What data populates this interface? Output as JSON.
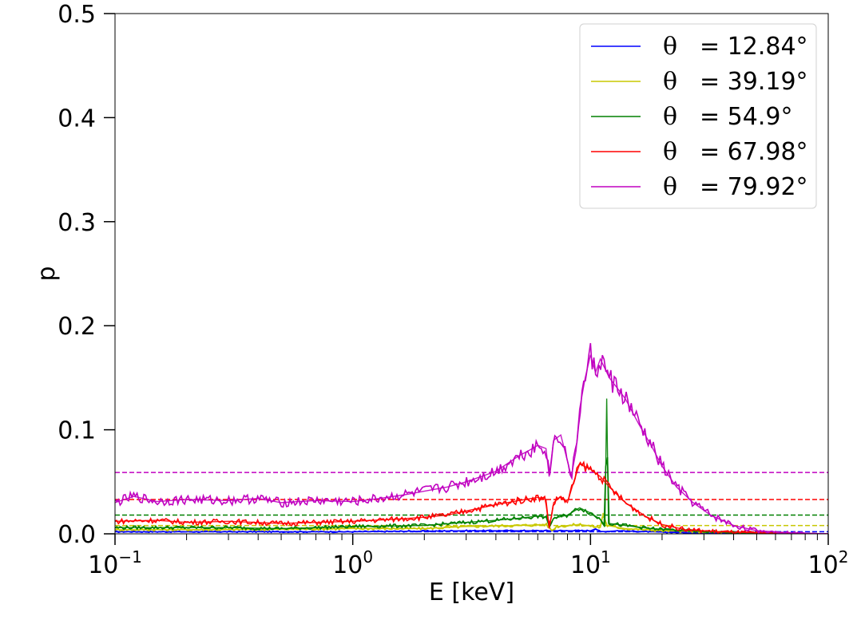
{
  "chart_data": {
    "type": "line",
    "xscale": "log",
    "xlim": [
      0.1,
      100
    ],
    "ylim": [
      0,
      0.5
    ],
    "xlabel": "E [keV]",
    "ylabel": "p",
    "yticks": [
      "0.0",
      "0.1",
      "0.2",
      "0.3",
      "0.4",
      "0.5"
    ],
    "xticks": [
      {
        "base": "10",
        "exp": "−1"
      },
      {
        "base": "10",
        "exp": "0"
      },
      {
        "base": "10",
        "exp": "1"
      },
      {
        "base": "10",
        "exp": "2"
      }
    ],
    "legend_position": "top-right",
    "series": [
      {
        "name": "θ = 12.84°",
        "legend_symbol": "θ",
        "legend_value": "= 12.84°",
        "color": "#0000ff",
        "points": [
          [
            0.1,
            0.002
          ],
          [
            0.3,
            0.002
          ],
          [
            1,
            0.002
          ],
          [
            3,
            0.003
          ],
          [
            5,
            0.003
          ],
          [
            6.5,
            0.003
          ],
          [
            8,
            0.003
          ],
          [
            10,
            0.003
          ],
          [
            10.5,
            0.005
          ],
          [
            11,
            0.002
          ],
          [
            13,
            0.003
          ],
          [
            18,
            0.002
          ],
          [
            25,
            0.001
          ],
          [
            40,
            0.0005
          ],
          [
            100,
            0.0
          ]
        ],
        "average": 0.002
      },
      {
        "name": "θ = 39.19°",
        "legend_symbol": "θ",
        "legend_value": "= 39.19°",
        "color": "#c8c800",
        "points": [
          [
            0.1,
            0.004
          ],
          [
            0.3,
            0.004
          ],
          [
            1,
            0.005
          ],
          [
            2,
            0.005
          ],
          [
            3,
            0.007
          ],
          [
            5,
            0.008
          ],
          [
            6.5,
            0.009
          ],
          [
            6.9,
            0.003
          ],
          [
            7.2,
            0.007
          ],
          [
            9,
            0.009
          ],
          [
            11,
            0.006
          ],
          [
            11.3,
            0.02
          ],
          [
            11.7,
            0.008
          ],
          [
            14,
            0.005
          ],
          [
            20,
            0.003
          ],
          [
            30,
            0.002
          ],
          [
            50,
            0.001
          ],
          [
            100,
            0.0
          ]
        ],
        "average": 0.008
      },
      {
        "name": "θ = 54.9°",
        "legend_symbol": "θ",
        "legend_value": "= 54.9°",
        "color": "#008000",
        "points": [
          [
            0.1,
            0.006
          ],
          [
            0.3,
            0.006
          ],
          [
            0.5,
            0.005
          ],
          [
            1,
            0.007
          ],
          [
            2,
            0.008
          ],
          [
            3,
            0.011
          ],
          [
            4,
            0.013
          ],
          [
            5,
            0.015
          ],
          [
            6,
            0.017
          ],
          [
            6.5,
            0.016
          ],
          [
            6.7,
            0.007
          ],
          [
            7,
            0.015
          ],
          [
            8,
            0.018
          ],
          [
            9,
            0.025
          ],
          [
            10,
            0.02
          ],
          [
            11,
            0.014
          ],
          [
            11.5,
            0.008
          ],
          [
            11.7,
            0.13
          ],
          [
            11.9,
            0.01
          ],
          [
            14,
            0.008
          ],
          [
            18,
            0.005
          ],
          [
            25,
            0.003
          ],
          [
            40,
            0.001
          ],
          [
            100,
            0.0
          ]
        ],
        "average": 0.018
      },
      {
        "name": "θ = 67.98°",
        "legend_symbol": "θ",
        "legend_value": "= 67.98°",
        "color": "#ff0000",
        "points": [
          [
            0.1,
            0.012
          ],
          [
            0.15,
            0.013
          ],
          [
            0.2,
            0.011
          ],
          [
            0.3,
            0.012
          ],
          [
            0.5,
            0.01
          ],
          [
            0.7,
            0.011
          ],
          [
            1,
            0.012
          ],
          [
            1.5,
            0.014
          ],
          [
            2,
            0.016
          ],
          [
            2.5,
            0.018
          ],
          [
            3,
            0.022
          ],
          [
            4,
            0.028
          ],
          [
            5,
            0.032
          ],
          [
            6,
            0.035
          ],
          [
            6.5,
            0.033
          ],
          [
            6.7,
            0.005
          ],
          [
            7,
            0.03
          ],
          [
            7.5,
            0.036
          ],
          [
            8,
            0.03
          ],
          [
            8.5,
            0.05
          ],
          [
            9,
            0.067
          ],
          [
            10,
            0.062
          ],
          [
            11,
            0.055
          ],
          [
            12,
            0.045
          ],
          [
            14,
            0.03
          ],
          [
            17,
            0.017
          ],
          [
            20,
            0.009
          ],
          [
            25,
            0.004
          ],
          [
            35,
            0.002
          ],
          [
            50,
            0.001
          ],
          [
            100,
            0.0
          ]
        ],
        "average": 0.033
      },
      {
        "name": "θ = 79.92°",
        "legend_symbol": "θ",
        "legend_value": "= 79.92°",
        "color": "#c000c0",
        "points": [
          [
            0.1,
            0.03
          ],
          [
            0.12,
            0.036
          ],
          [
            0.15,
            0.031
          ],
          [
            0.2,
            0.033
          ],
          [
            0.3,
            0.032
          ],
          [
            0.4,
            0.034
          ],
          [
            0.5,
            0.03
          ],
          [
            0.7,
            0.032
          ],
          [
            1,
            0.031
          ],
          [
            1.3,
            0.034
          ],
          [
            1.7,
            0.038
          ],
          [
            2,
            0.041
          ],
          [
            2.5,
            0.045
          ],
          [
            3,
            0.05
          ],
          [
            4,
            0.06
          ],
          [
            5,
            0.075
          ],
          [
            5.5,
            0.08
          ],
          [
            6,
            0.085
          ],
          [
            6.5,
            0.082
          ],
          [
            6.7,
            0.055
          ],
          [
            7,
            0.09
          ],
          [
            7.5,
            0.095
          ],
          [
            8,
            0.07
          ],
          [
            8.3,
            0.055
          ],
          [
            8.7,
            0.08
          ],
          [
            9,
            0.12
          ],
          [
            9.5,
            0.15
          ],
          [
            10,
            0.172
          ],
          [
            10.5,
            0.155
          ],
          [
            11,
            0.168
          ],
          [
            12,
            0.15
          ],
          [
            14,
            0.13
          ],
          [
            16,
            0.105
          ],
          [
            18,
            0.085
          ],
          [
            20,
            0.065
          ],
          [
            23,
            0.045
          ],
          [
            27,
            0.03
          ],
          [
            32,
            0.018
          ],
          [
            40,
            0.008
          ],
          [
            50,
            0.003
          ],
          [
            70,
            0.001
          ],
          [
            100,
            0.0
          ]
        ],
        "average": 0.059
      }
    ]
  }
}
